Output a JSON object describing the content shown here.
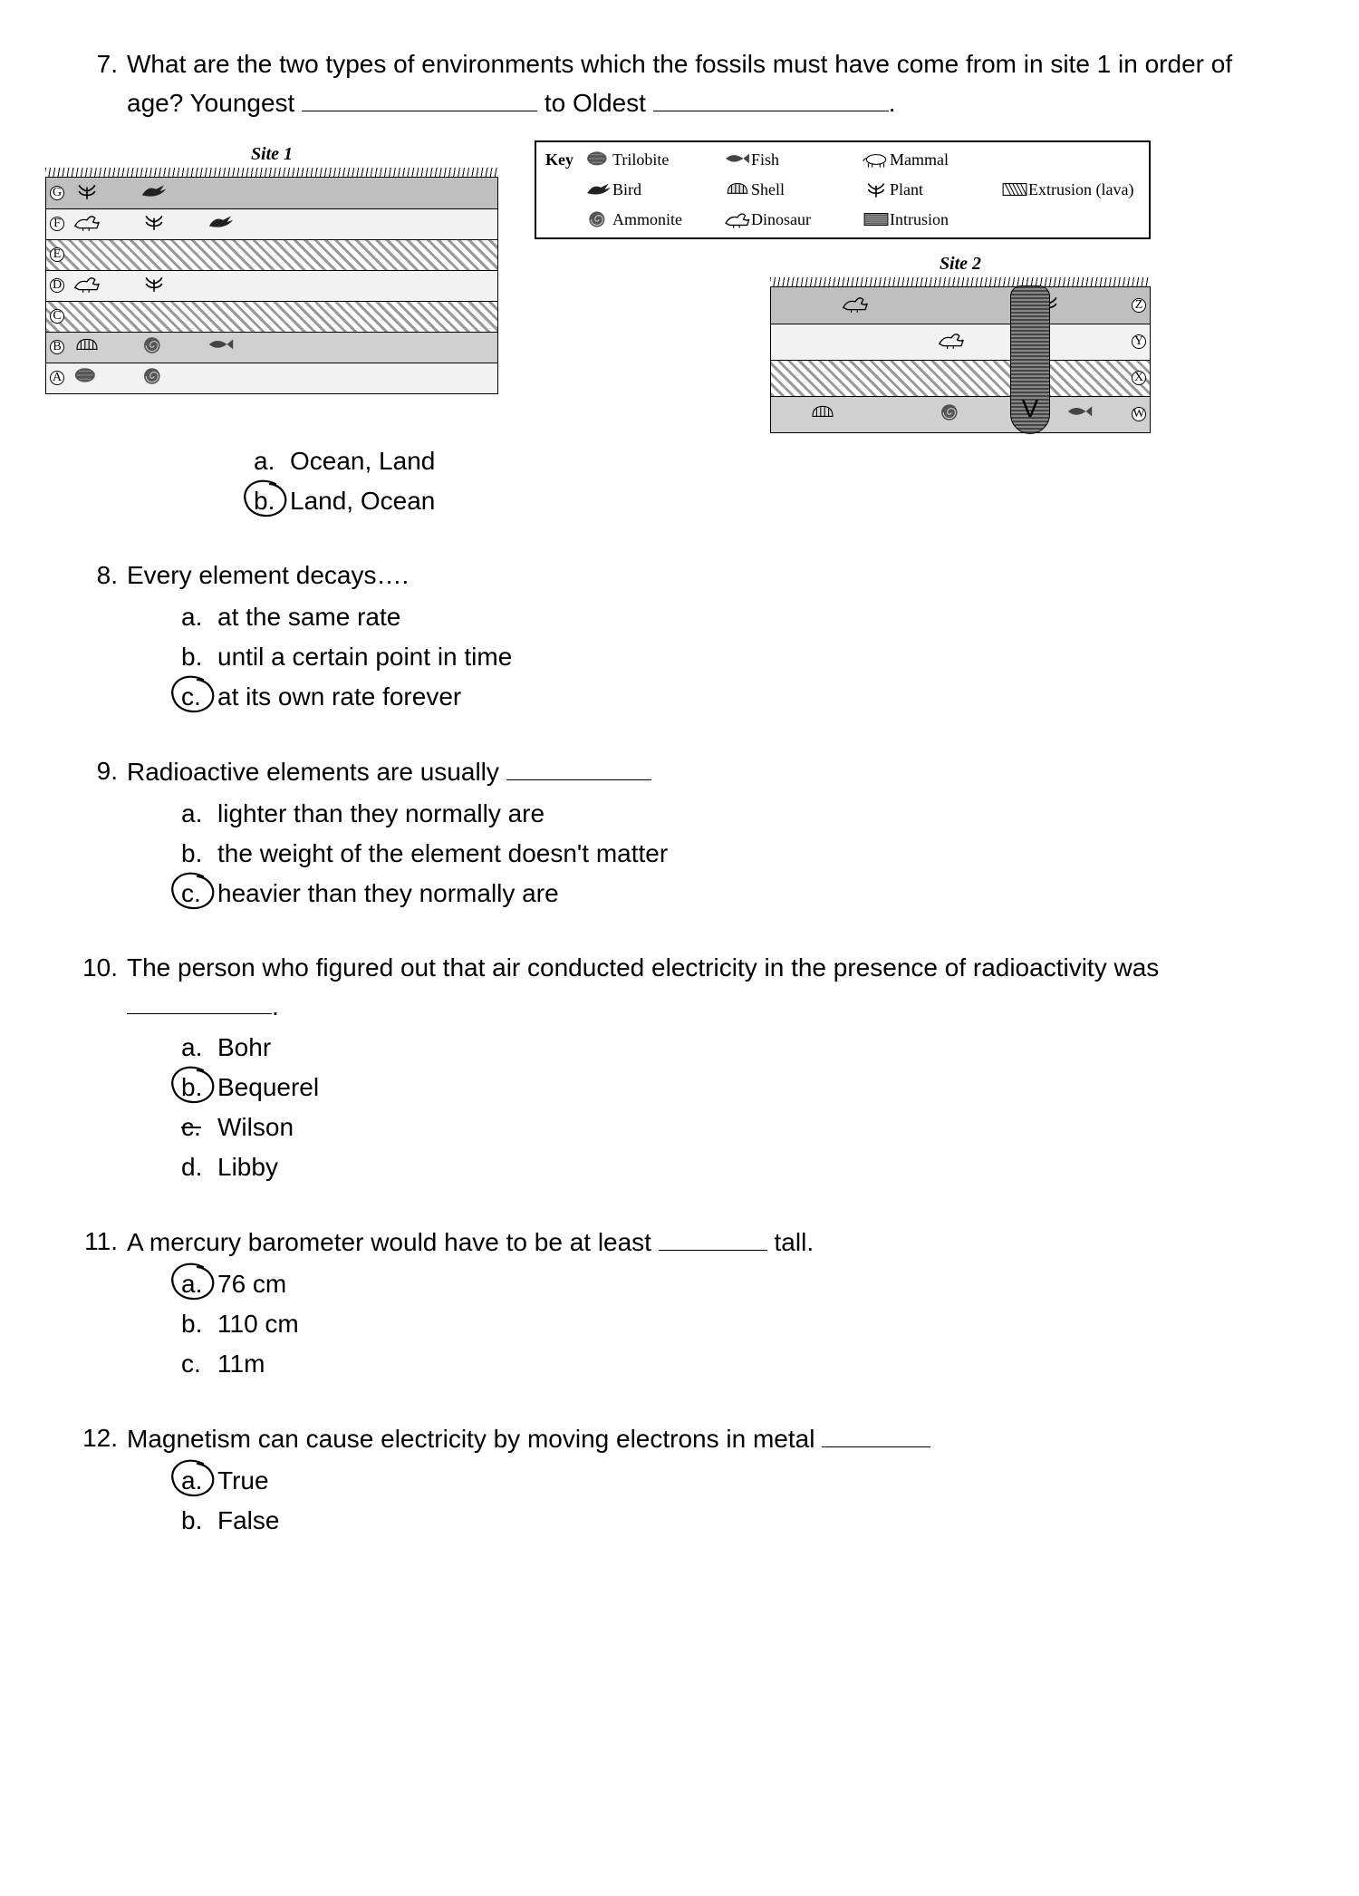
{
  "q7": {
    "num": "7.",
    "text_a": "What are the two types of environments which the fossils must have come from in site 1 in order of age? Youngest",
    "text_b": "to Oldest",
    "opts": {
      "a": {
        "l": "a.",
        "t": "Ocean, Land"
      },
      "b": {
        "l": "b.",
        "t": "Land, Ocean"
      }
    },
    "selected": "b"
  },
  "diagram": {
    "site1_title": "Site 1",
    "site2_title": "Site 2",
    "key_label": "Key",
    "key_items": [
      {
        "name": "trilobite",
        "label": "Trilobite"
      },
      {
        "name": "fish",
        "label": "Fish"
      },
      {
        "name": "mammal",
        "label": "Mammal"
      },
      {
        "name": "bird",
        "label": "Bird"
      },
      {
        "name": "shell",
        "label": "Shell"
      },
      {
        "name": "plant",
        "label": "Plant"
      },
      {
        "name": "extrusion",
        "label": "Extrusion (lava)"
      },
      {
        "name": "ammonite",
        "label": "Ammonite"
      },
      {
        "name": "dinosaur",
        "label": "Dinosaur"
      },
      {
        "name": "intrusion",
        "label": "Intrusion"
      }
    ],
    "site1_layers": [
      {
        "tag": "G",
        "style": "grey",
        "fossils": [
          "plant",
          "bird"
        ]
      },
      {
        "tag": "F",
        "style": "light",
        "fossils": [
          "dinosaur",
          "plant",
          "bird"
        ]
      },
      {
        "tag": "E",
        "style": "hatch",
        "fossils": []
      },
      {
        "tag": "D",
        "style": "light",
        "fossils": [
          "dinosaur",
          "plant"
        ]
      },
      {
        "tag": "C",
        "style": "hatch",
        "fossils": []
      },
      {
        "tag": "B",
        "style": "med",
        "fossils": [
          "shell",
          "ammonite",
          "fish"
        ]
      },
      {
        "tag": "A",
        "style": "light",
        "fossils": [
          "trilobite",
          "ammonite"
        ]
      }
    ],
    "site2_layers": [
      {
        "tag": "Z",
        "style": "grey",
        "fossils": [
          "dinosaur",
          "plant"
        ]
      },
      {
        "tag": "Y",
        "style": "light",
        "fossils": [
          "dinosaur"
        ]
      },
      {
        "tag": "X",
        "style": "hatch",
        "fossils": []
      },
      {
        "tag": "W",
        "style": "med",
        "fossils": [
          "shell",
          "ammonite",
          "fish"
        ]
      }
    ],
    "intrusion_tag": "V"
  },
  "q8": {
    "num": "8.",
    "text": "Every element decays….",
    "opts": {
      "a": {
        "l": "a.",
        "t": "at the same rate"
      },
      "b": {
        "l": "b.",
        "t": "until a certain point in time"
      },
      "c": {
        "l": "c.",
        "t": "at its own rate forever"
      }
    },
    "selected": "c"
  },
  "q9": {
    "num": "9.",
    "text": "Radioactive elements are usually",
    "opts": {
      "a": {
        "l": "a.",
        "t": "lighter than they normally are"
      },
      "b": {
        "l": "b.",
        "t": "the weight of the element doesn't matter"
      },
      "c": {
        "l": "c.",
        "t": "heavier than they normally are"
      }
    },
    "selected": "c"
  },
  "q10": {
    "num": "10.",
    "text_a": "The person who figured out that air conducted electricity in the presence of radioactivity was",
    "period": ".",
    "opts": {
      "a": {
        "l": "a.",
        "t": "Bohr"
      },
      "b": {
        "l": "b.",
        "t": "Bequerel"
      },
      "c": {
        "l": "c.",
        "t": "Wilson"
      },
      "d": {
        "l": "d.",
        "t": "Libby"
      }
    },
    "selected": "b",
    "strike": "c"
  },
  "q11": {
    "num": "11.",
    "text_a": "A mercury barometer would have to be at least",
    "text_b": "tall.",
    "opts": {
      "a": {
        "l": "a.",
        "t": "76 cm"
      },
      "b": {
        "l": "b.",
        "t": "110 cm"
      },
      "c": {
        "l": "c.",
        "t": "11m"
      }
    },
    "selected": "a"
  },
  "q12": {
    "num": "12.",
    "text": "Magnetism can cause electricity by moving electrons in metal",
    "opts": {
      "a": {
        "l": "a.",
        "t": "True"
      },
      "b": {
        "l": "b.",
        "t": "False"
      }
    },
    "selected": "a"
  },
  "colors": {
    "text": "#000000",
    "bg": "#ffffff",
    "grey": "#bfbfbf",
    "light": "#f2f2f2",
    "med": "#d0d0d0",
    "circle_stroke": "#000000"
  }
}
